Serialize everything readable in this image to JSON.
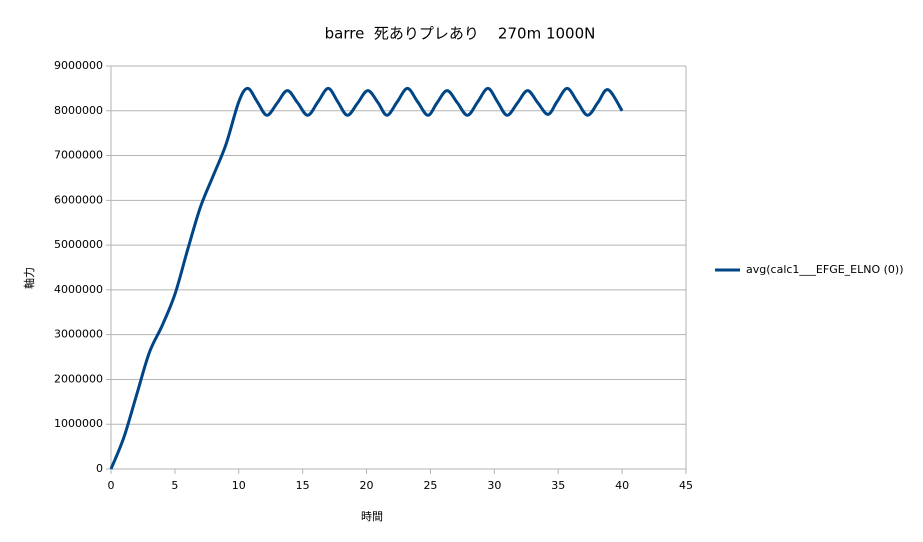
{
  "chart_data": {
    "type": "line",
    "title": "barre  死ありプレあり    270m 1000N",
    "x_label": "時間",
    "y_label": "軸力",
    "x": [
      0,
      1,
      2,
      3,
      4,
      5,
      6,
      7,
      8,
      9,
      10,
      10.7,
      11.45,
      12.2,
      13.0,
      13.8,
      14.6,
      15.4,
      16.2,
      17.0,
      17.75,
      18.5,
      19.3,
      20.1,
      20.9,
      21.6,
      22.4,
      23.2,
      24.0,
      24.8,
      25.5,
      26.3,
      27.1,
      27.9,
      28.7,
      29.5,
      30.25,
      31.0,
      31.8,
      32.6,
      33.4,
      34.2,
      34.9,
      35.7,
      36.5,
      37.3,
      38.1,
      38.9,
      40
    ],
    "series": [
      {
        "name": "avg(calc1___EFGE_ELNO (0))",
        "color": "#004586",
        "values": [
          0,
          700000,
          1650000,
          2600000,
          3200000,
          3900000,
          4900000,
          5850000,
          6550000,
          7250000,
          8200000,
          8500000,
          8200000,
          7900000,
          8170000,
          8450000,
          8180000,
          7900000,
          8200000,
          8500000,
          8200000,
          7900000,
          8170000,
          8450000,
          8180000,
          7900000,
          8200000,
          8500000,
          8200000,
          7900000,
          8170000,
          8450000,
          8180000,
          7900000,
          8200000,
          8500000,
          8200000,
          7900000,
          8170000,
          8450000,
          8180000,
          7920000,
          8200000,
          8500000,
          8200000,
          7900000,
          8180000,
          8470000,
          8000000
        ]
      }
    ],
    "xlim": [
      0,
      45
    ],
    "xticks": [
      0,
      5,
      10,
      15,
      20,
      25,
      30,
      35,
      40,
      45
    ],
    "ylim": [
      0,
      9000000
    ],
    "yticks": [
      0,
      1000000,
      2000000,
      3000000,
      4000000,
      5000000,
      6000000,
      7000000,
      8000000,
      9000000
    ],
    "grid": true,
    "legend": "right"
  }
}
